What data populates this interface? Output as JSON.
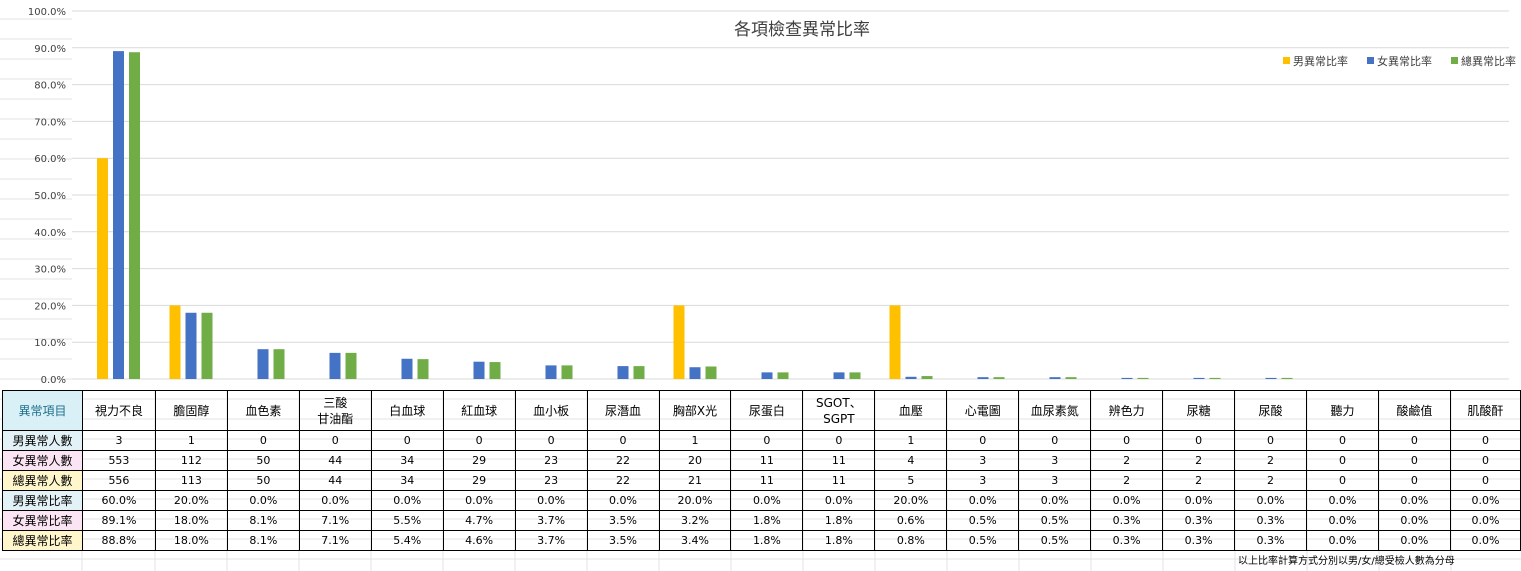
{
  "chart_data": {
    "type": "bar",
    "title": "各項檢查異常比率",
    "categories": [
      "視力不良",
      "膽固醇",
      "血色素",
      "三酸甘油酯",
      "白血球",
      "紅血球",
      "血小板",
      "尿潛血",
      "胸部X光",
      "尿蛋白",
      "SGOT、SGPT",
      "血壓",
      "心電圖",
      "血尿素氮",
      "辨色力",
      "尿糖",
      "尿酸",
      "聽力",
      "酸鹼值",
      "肌酸酐"
    ],
    "series": [
      {
        "name": "男異常比率",
        "color": "#FFC000",
        "values": [
          60.0,
          20.0,
          0.0,
          0.0,
          0.0,
          0.0,
          0.0,
          0.0,
          20.0,
          0.0,
          0.0,
          20.0,
          0.0,
          0.0,
          0.0,
          0.0,
          0.0,
          0.0,
          0.0,
          0.0
        ]
      },
      {
        "name": "女異常比率",
        "color": "#4472C4",
        "values": [
          89.1,
          18.0,
          8.1,
          7.1,
          5.5,
          4.7,
          3.7,
          3.5,
          3.2,
          1.8,
          1.8,
          0.6,
          0.5,
          0.5,
          0.3,
          0.3,
          0.3,
          0.0,
          0.0,
          0.0
        ]
      },
      {
        "name": "總異常比率",
        "color": "#70AD47",
        "values": [
          88.8,
          18.0,
          8.1,
          7.1,
          5.4,
          4.6,
          3.7,
          3.5,
          3.4,
          1.8,
          1.8,
          0.8,
          0.5,
          0.5,
          0.3,
          0.3,
          0.3,
          0.0,
          0.0,
          0.0
        ]
      }
    ],
    "ylim": [
      0,
      100
    ],
    "yticks": [
      "0.0%",
      "10.0%",
      "20.0%",
      "30.0%",
      "40.0%",
      "50.0%",
      "60.0%",
      "70.0%",
      "80.0%",
      "90.0%",
      "100.0%"
    ],
    "legend_position": "top-right",
    "grid": true
  },
  "table": {
    "corner_label": "異常項目",
    "columns": [
      [
        "視力不良"
      ],
      [
        "膽固醇"
      ],
      [
        "血色素"
      ],
      [
        "三酸",
        "甘油酯"
      ],
      [
        "白血球"
      ],
      [
        "紅血球"
      ],
      [
        "血小板"
      ],
      [
        "尿潛血"
      ],
      [
        "胸部X光"
      ],
      [
        "尿蛋白"
      ],
      [
        "SGOT、",
        "SGPT"
      ],
      [
        "血壓"
      ],
      [
        "心電圖"
      ],
      [
        "血尿素氮"
      ],
      [
        "辨色力"
      ],
      [
        "尿糖"
      ],
      [
        "尿酸"
      ],
      [
        "聽力"
      ],
      [
        "酸鹼值"
      ],
      [
        "肌酸酐"
      ]
    ],
    "rows": [
      {
        "label": "男異常人數",
        "bg": "#E2F2F6",
        "values": [
          "3",
          "1",
          "0",
          "0",
          "0",
          "0",
          "0",
          "0",
          "1",
          "0",
          "0",
          "1",
          "0",
          "0",
          "0",
          "0",
          "0",
          "0",
          "0",
          "0"
        ]
      },
      {
        "label": "女異常人數",
        "bg": "#FBE4F4",
        "values": [
          "553",
          "112",
          "50",
          "44",
          "34",
          "29",
          "23",
          "22",
          "20",
          "11",
          "11",
          "4",
          "3",
          "3",
          "2",
          "2",
          "2",
          "0",
          "0",
          "0"
        ]
      },
      {
        "label": "總異常人數",
        "bg": "#FFF6CC",
        "values": [
          "556",
          "113",
          "50",
          "44",
          "34",
          "29",
          "23",
          "22",
          "21",
          "11",
          "11",
          "5",
          "3",
          "3",
          "2",
          "2",
          "2",
          "0",
          "0",
          "0"
        ]
      },
      {
        "label": "男異常比率",
        "bg": "#E2F2F6",
        "values": [
          "60.0%",
          "20.0%",
          "0.0%",
          "0.0%",
          "0.0%",
          "0.0%",
          "0.0%",
          "0.0%",
          "20.0%",
          "0.0%",
          "0.0%",
          "20.0%",
          "0.0%",
          "0.0%",
          "0.0%",
          "0.0%",
          "0.0%",
          "0.0%",
          "0.0%",
          "0.0%"
        ]
      },
      {
        "label": "女異常比率",
        "bg": "#FBE4F4",
        "values": [
          "89.1%",
          "18.0%",
          "8.1%",
          "7.1%",
          "5.5%",
          "4.7%",
          "3.7%",
          "3.5%",
          "3.2%",
          "1.8%",
          "1.8%",
          "0.6%",
          "0.5%",
          "0.5%",
          "0.3%",
          "0.3%",
          "0.3%",
          "0.0%",
          "0.0%",
          "0.0%"
        ]
      },
      {
        "label": "總異常比率",
        "bg": "#FFF6CC",
        "values": [
          "88.8%",
          "18.0%",
          "8.1%",
          "7.1%",
          "5.4%",
          "4.6%",
          "3.7%",
          "3.5%",
          "3.4%",
          "1.8%",
          "1.8%",
          "0.8%",
          "0.5%",
          "0.5%",
          "0.3%",
          "0.3%",
          "0.3%",
          "0.0%",
          "0.0%",
          "0.0%"
        ]
      }
    ],
    "corner_bg": "#D9F0F7",
    "corner_color": "#1F6F8B"
  },
  "footnote": "以上比率計算方式分別以男/女/總受檢人數為分母"
}
